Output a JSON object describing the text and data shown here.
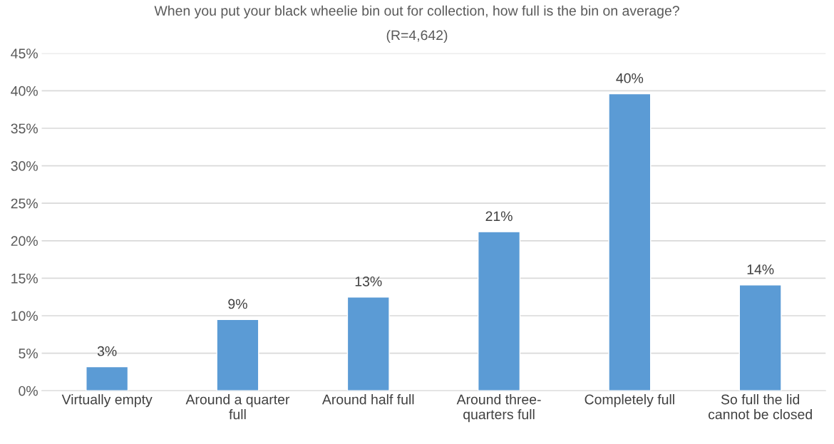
{
  "chart_data": {
    "type": "bar",
    "title": "When you put your black wheelie bin out for collection, how full is the bin on average?",
    "subtitle": "(R=4,642)",
    "categories": [
      "Virtually empty",
      "Around a quarter\nfull",
      "Around half full",
      "Around three-\nquarters full",
      "Completely full",
      "So full the lid\ncannot be closed"
    ],
    "values": [
      3.2,
      9.5,
      12.5,
      21.2,
      39.6,
      14.1
    ],
    "value_labels": [
      "3%",
      "9%",
      "13%",
      "21%",
      "40%",
      "14%"
    ],
    "color": "#5b9bd5",
    "ylim": [
      0,
      45
    ],
    "yticks": [
      {
        "value": 0,
        "label": "0%"
      },
      {
        "value": 5,
        "label": "5%"
      },
      {
        "value": 10,
        "label": "10%"
      },
      {
        "value": 15,
        "label": "15%"
      },
      {
        "value": 20,
        "label": "20%"
      },
      {
        "value": 25,
        "label": "25%"
      },
      {
        "value": 30,
        "label": "30%"
      },
      {
        "value": 35,
        "label": "35%"
      },
      {
        "value": 40,
        "label": "40%"
      },
      {
        "value": 45,
        "label": "45%"
      }
    ],
    "grid": "y",
    "legend": false
  }
}
